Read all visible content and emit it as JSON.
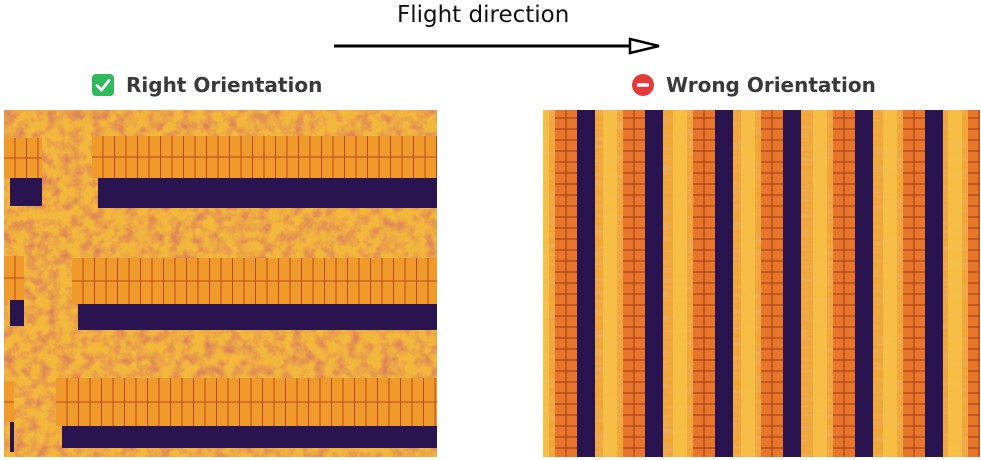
{
  "flight": {
    "label": "Flight direction"
  },
  "right_panel": {
    "caption": "Right Orientation",
    "icon": "check-icon",
    "icon_color": "#2fba5d"
  },
  "wrong_panel": {
    "caption": "Wrong Orientation",
    "icon": "no-entry-icon",
    "icon_color": "#e43a3a"
  },
  "colors": {
    "ground": "#f2b33a",
    "ground_dark": "#b8441f",
    "panel": "#f19a2c",
    "panel_line": "#b64a1e",
    "shadow": "#2a1450"
  }
}
